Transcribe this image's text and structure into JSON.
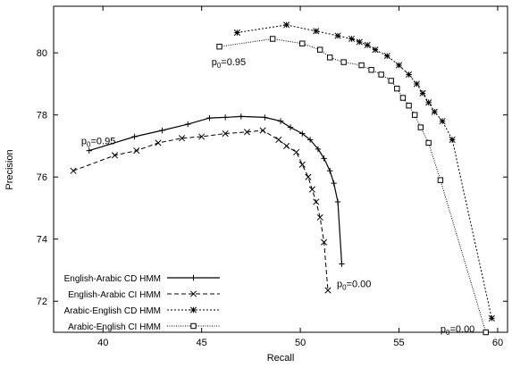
{
  "chart_data": {
    "type": "line",
    "xlabel": "Recall",
    "ylabel": "Precision",
    "xlim": [
      37.5,
      60.5
    ],
    "ylim": [
      71,
      81.5
    ],
    "xticks": [
      40,
      45,
      50,
      55,
      60
    ],
    "yticks": [
      72,
      74,
      76,
      78,
      80
    ],
    "grid": false,
    "legend_position": "bottom-left",
    "series": [
      {
        "name": "English-Arabic CD HMM",
        "marker": "plus",
        "dash": "solid",
        "x": [
          39.3,
          41.6,
          43.0,
          44.3,
          45.4,
          46.2,
          47.0,
          48.2,
          49.0,
          49.5,
          50.1,
          50.5,
          50.9,
          51.2,
          51.5,
          51.7,
          51.9,
          52.1
        ],
        "y": [
          76.85,
          77.3,
          77.5,
          77.7,
          77.9,
          77.92,
          77.95,
          77.92,
          77.8,
          77.6,
          77.4,
          77.2,
          76.9,
          76.6,
          76.2,
          75.8,
          75.2,
          73.2
        ]
      },
      {
        "name": "English-Arabic CI HMM",
        "marker": "x",
        "dash": "dashed",
        "x": [
          38.5,
          40.6,
          41.7,
          42.8,
          44.0,
          45.0,
          46.2,
          47.3,
          48.1,
          48.9,
          49.3,
          49.8,
          50.1,
          50.4,
          50.6,
          50.8,
          51.0,
          51.2,
          51.4
        ],
        "y": [
          76.2,
          76.7,
          76.85,
          77.1,
          77.25,
          77.3,
          77.4,
          77.45,
          77.5,
          77.2,
          77.0,
          76.8,
          76.4,
          76.0,
          75.6,
          75.2,
          74.7,
          73.9,
          72.35
        ]
      },
      {
        "name": "Arabic-English CD HMM",
        "marker": "star",
        "dash": "dotted",
        "x": [
          46.8,
          49.3,
          50.8,
          51.9,
          52.6,
          53.0,
          53.4,
          53.8,
          54.4,
          55.0,
          55.5,
          55.9,
          56.2,
          56.5,
          56.8,
          57.2,
          57.7,
          59.7
        ],
        "y": [
          80.65,
          80.9,
          80.7,
          80.55,
          80.45,
          80.35,
          80.25,
          80.1,
          79.9,
          79.6,
          79.3,
          79.0,
          78.7,
          78.4,
          78.1,
          77.8,
          77.2,
          71.45
        ]
      },
      {
        "name": "Arabic-English CI HMM",
        "marker": "box",
        "dash": "fine-dotted",
        "x": [
          45.9,
          48.6,
          50.1,
          51.0,
          51.5,
          52.2,
          53.1,
          53.6,
          54.1,
          54.6,
          54.9,
          55.2,
          55.5,
          55.8,
          56.1,
          56.5,
          57.1,
          59.4
        ],
        "y": [
          80.2,
          80.45,
          80.3,
          80.1,
          79.85,
          79.7,
          79.6,
          79.45,
          79.3,
          79.1,
          78.85,
          78.55,
          78.3,
          78.0,
          77.6,
          77.1,
          75.9,
          71.0
        ]
      }
    ],
    "annotations": [
      {
        "id": "p0-ea-start",
        "prefix": "p",
        "sub": "0",
        "suffix": "=0.95",
        "x": 38.9,
        "y": 77.05
      },
      {
        "id": "p0-ae-start",
        "prefix": "p",
        "sub": "0",
        "suffix": "=0.95",
        "x": 45.5,
        "y": 79.6
      },
      {
        "id": "p0-ea-end",
        "prefix": "p",
        "sub": "0",
        "suffix": "=0.00",
        "x": 51.85,
        "y": 72.45
      },
      {
        "id": "p0-ae-end",
        "prefix": "p",
        "sub": "0",
        "suffix": "=0.00",
        "x": 57.1,
        "y": 71.0
      }
    ]
  }
}
